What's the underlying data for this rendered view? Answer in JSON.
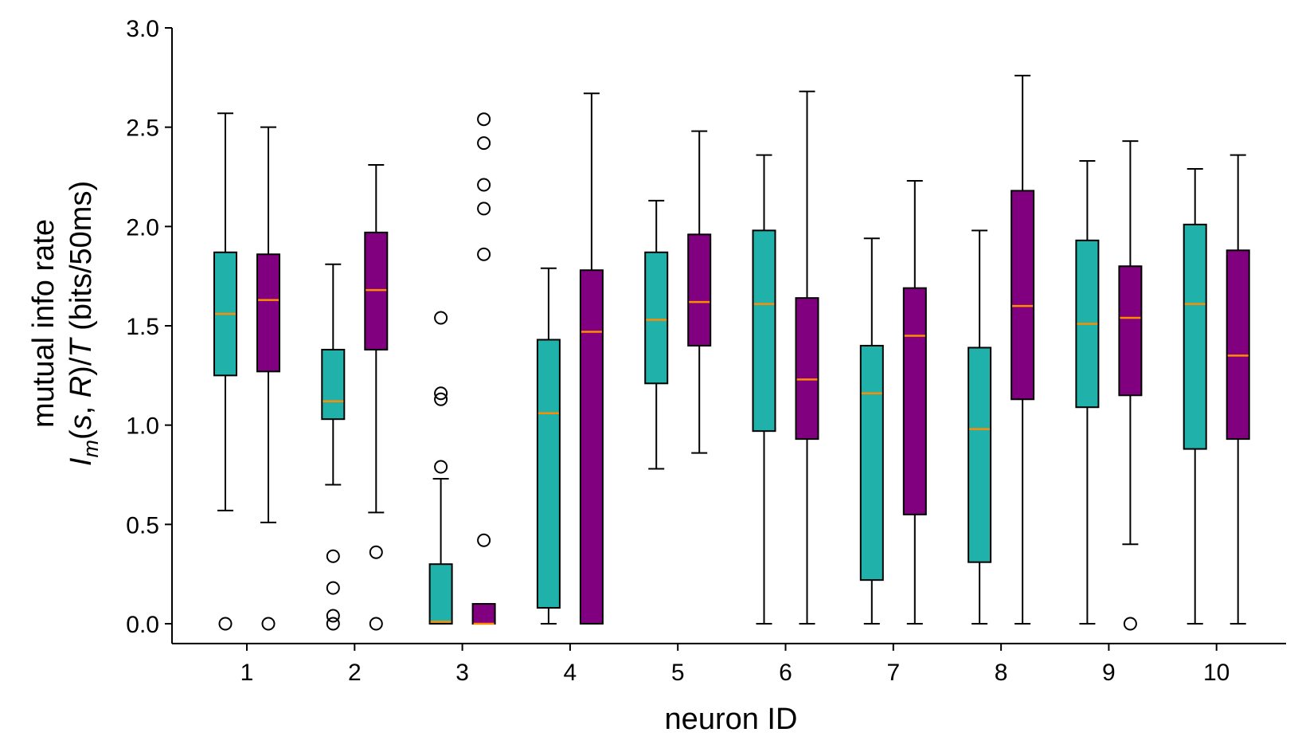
{
  "chart_data": {
    "type": "box",
    "xlabel": "neuron ID",
    "ylabel_line1": "mutual info rate",
    "ylabel_line2": "I_m(s, R)/T (bits/50ms)",
    "ylim": [
      -0.1,
      3.0
    ],
    "yticks": [
      "0.0",
      "0.5",
      "1.0",
      "1.5",
      "2.0",
      "2.5",
      "3.0"
    ],
    "categories": [
      "1",
      "2",
      "3",
      "4",
      "5",
      "6",
      "7",
      "8",
      "9",
      "10"
    ],
    "grid": false,
    "colors": {
      "series_a": "#20b2aa",
      "series_b": "#800080",
      "median": "#ff8c00",
      "outline": "#000000"
    },
    "series": [
      {
        "boxes": [
          {
            "whislo": 0.57,
            "q1": 1.25,
            "med": 1.56,
            "q3": 1.87,
            "whishi": 2.57,
            "fliers": [
              0.0
            ]
          },
          {
            "whislo": 0.7,
            "q1": 1.03,
            "med": 1.12,
            "q3": 1.38,
            "whishi": 1.81,
            "fliers": [
              0.34,
              0.18,
              0.04,
              0.0
            ]
          },
          {
            "whislo": 0.0,
            "q1": 0.0,
            "med": 0.01,
            "q3": 0.3,
            "whishi": 0.73,
            "fliers": [
              0.79,
              1.13,
              1.16,
              1.54
            ]
          },
          {
            "whislo": 0.0,
            "q1": 0.08,
            "med": 1.06,
            "q3": 1.43,
            "whishi": 1.79,
            "fliers": []
          },
          {
            "whislo": 0.78,
            "q1": 1.21,
            "med": 1.53,
            "q3": 1.87,
            "whishi": 2.13,
            "fliers": []
          },
          {
            "whislo": 0.0,
            "q1": 0.97,
            "med": 1.61,
            "q3": 1.98,
            "whishi": 2.36,
            "fliers": []
          },
          {
            "whislo": 0.0,
            "q1": 0.22,
            "med": 1.16,
            "q3": 1.4,
            "whishi": 1.94,
            "fliers": []
          },
          {
            "whislo": 0.0,
            "q1": 0.31,
            "med": 0.98,
            "q3": 1.39,
            "whishi": 1.98,
            "fliers": []
          },
          {
            "whislo": 0.0,
            "q1": 1.09,
            "med": 1.51,
            "q3": 1.93,
            "whishi": 2.33,
            "fliers": []
          },
          {
            "whislo": 0.0,
            "q1": 0.88,
            "med": 1.61,
            "q3": 2.01,
            "whishi": 2.29,
            "fliers": []
          }
        ]
      },
      {
        "boxes": [
          {
            "whislo": 0.51,
            "q1": 1.27,
            "med": 1.63,
            "q3": 1.86,
            "whishi": 2.5,
            "fliers": [
              0.0
            ]
          },
          {
            "whislo": 0.56,
            "q1": 1.38,
            "med": 1.68,
            "q3": 1.97,
            "whishi": 2.31,
            "fliers": [
              0.36,
              0.0
            ]
          },
          {
            "whislo": 0.0,
            "q1": 0.0,
            "med": 0.0,
            "q3": 0.1,
            "whishi": 0.1,
            "fliers": [
              0.42,
              1.86,
              2.09,
              2.21,
              2.42,
              2.54
            ]
          },
          {
            "whislo": 0.0,
            "q1": 0.0,
            "med": 1.47,
            "q3": 1.78,
            "whishi": 2.67,
            "fliers": []
          },
          {
            "whislo": 0.86,
            "q1": 1.4,
            "med": 1.62,
            "q3": 1.96,
            "whishi": 2.48,
            "fliers": []
          },
          {
            "whislo": 0.0,
            "q1": 0.93,
            "med": 1.23,
            "q3": 1.64,
            "whishi": 2.68,
            "fliers": []
          },
          {
            "whislo": 0.0,
            "q1": 0.55,
            "med": 1.45,
            "q3": 1.69,
            "whishi": 2.23,
            "fliers": []
          },
          {
            "whislo": 0.0,
            "q1": 1.13,
            "med": 1.6,
            "q3": 2.18,
            "whishi": 2.76,
            "fliers": []
          },
          {
            "whislo": 0.4,
            "q1": 1.15,
            "med": 1.54,
            "q3": 1.8,
            "whishi": 2.43,
            "fliers": [
              0.0
            ]
          },
          {
            "whislo": 0.0,
            "q1": 0.93,
            "med": 1.35,
            "q3": 1.88,
            "whishi": 2.36,
            "fliers": []
          }
        ]
      }
    ]
  }
}
